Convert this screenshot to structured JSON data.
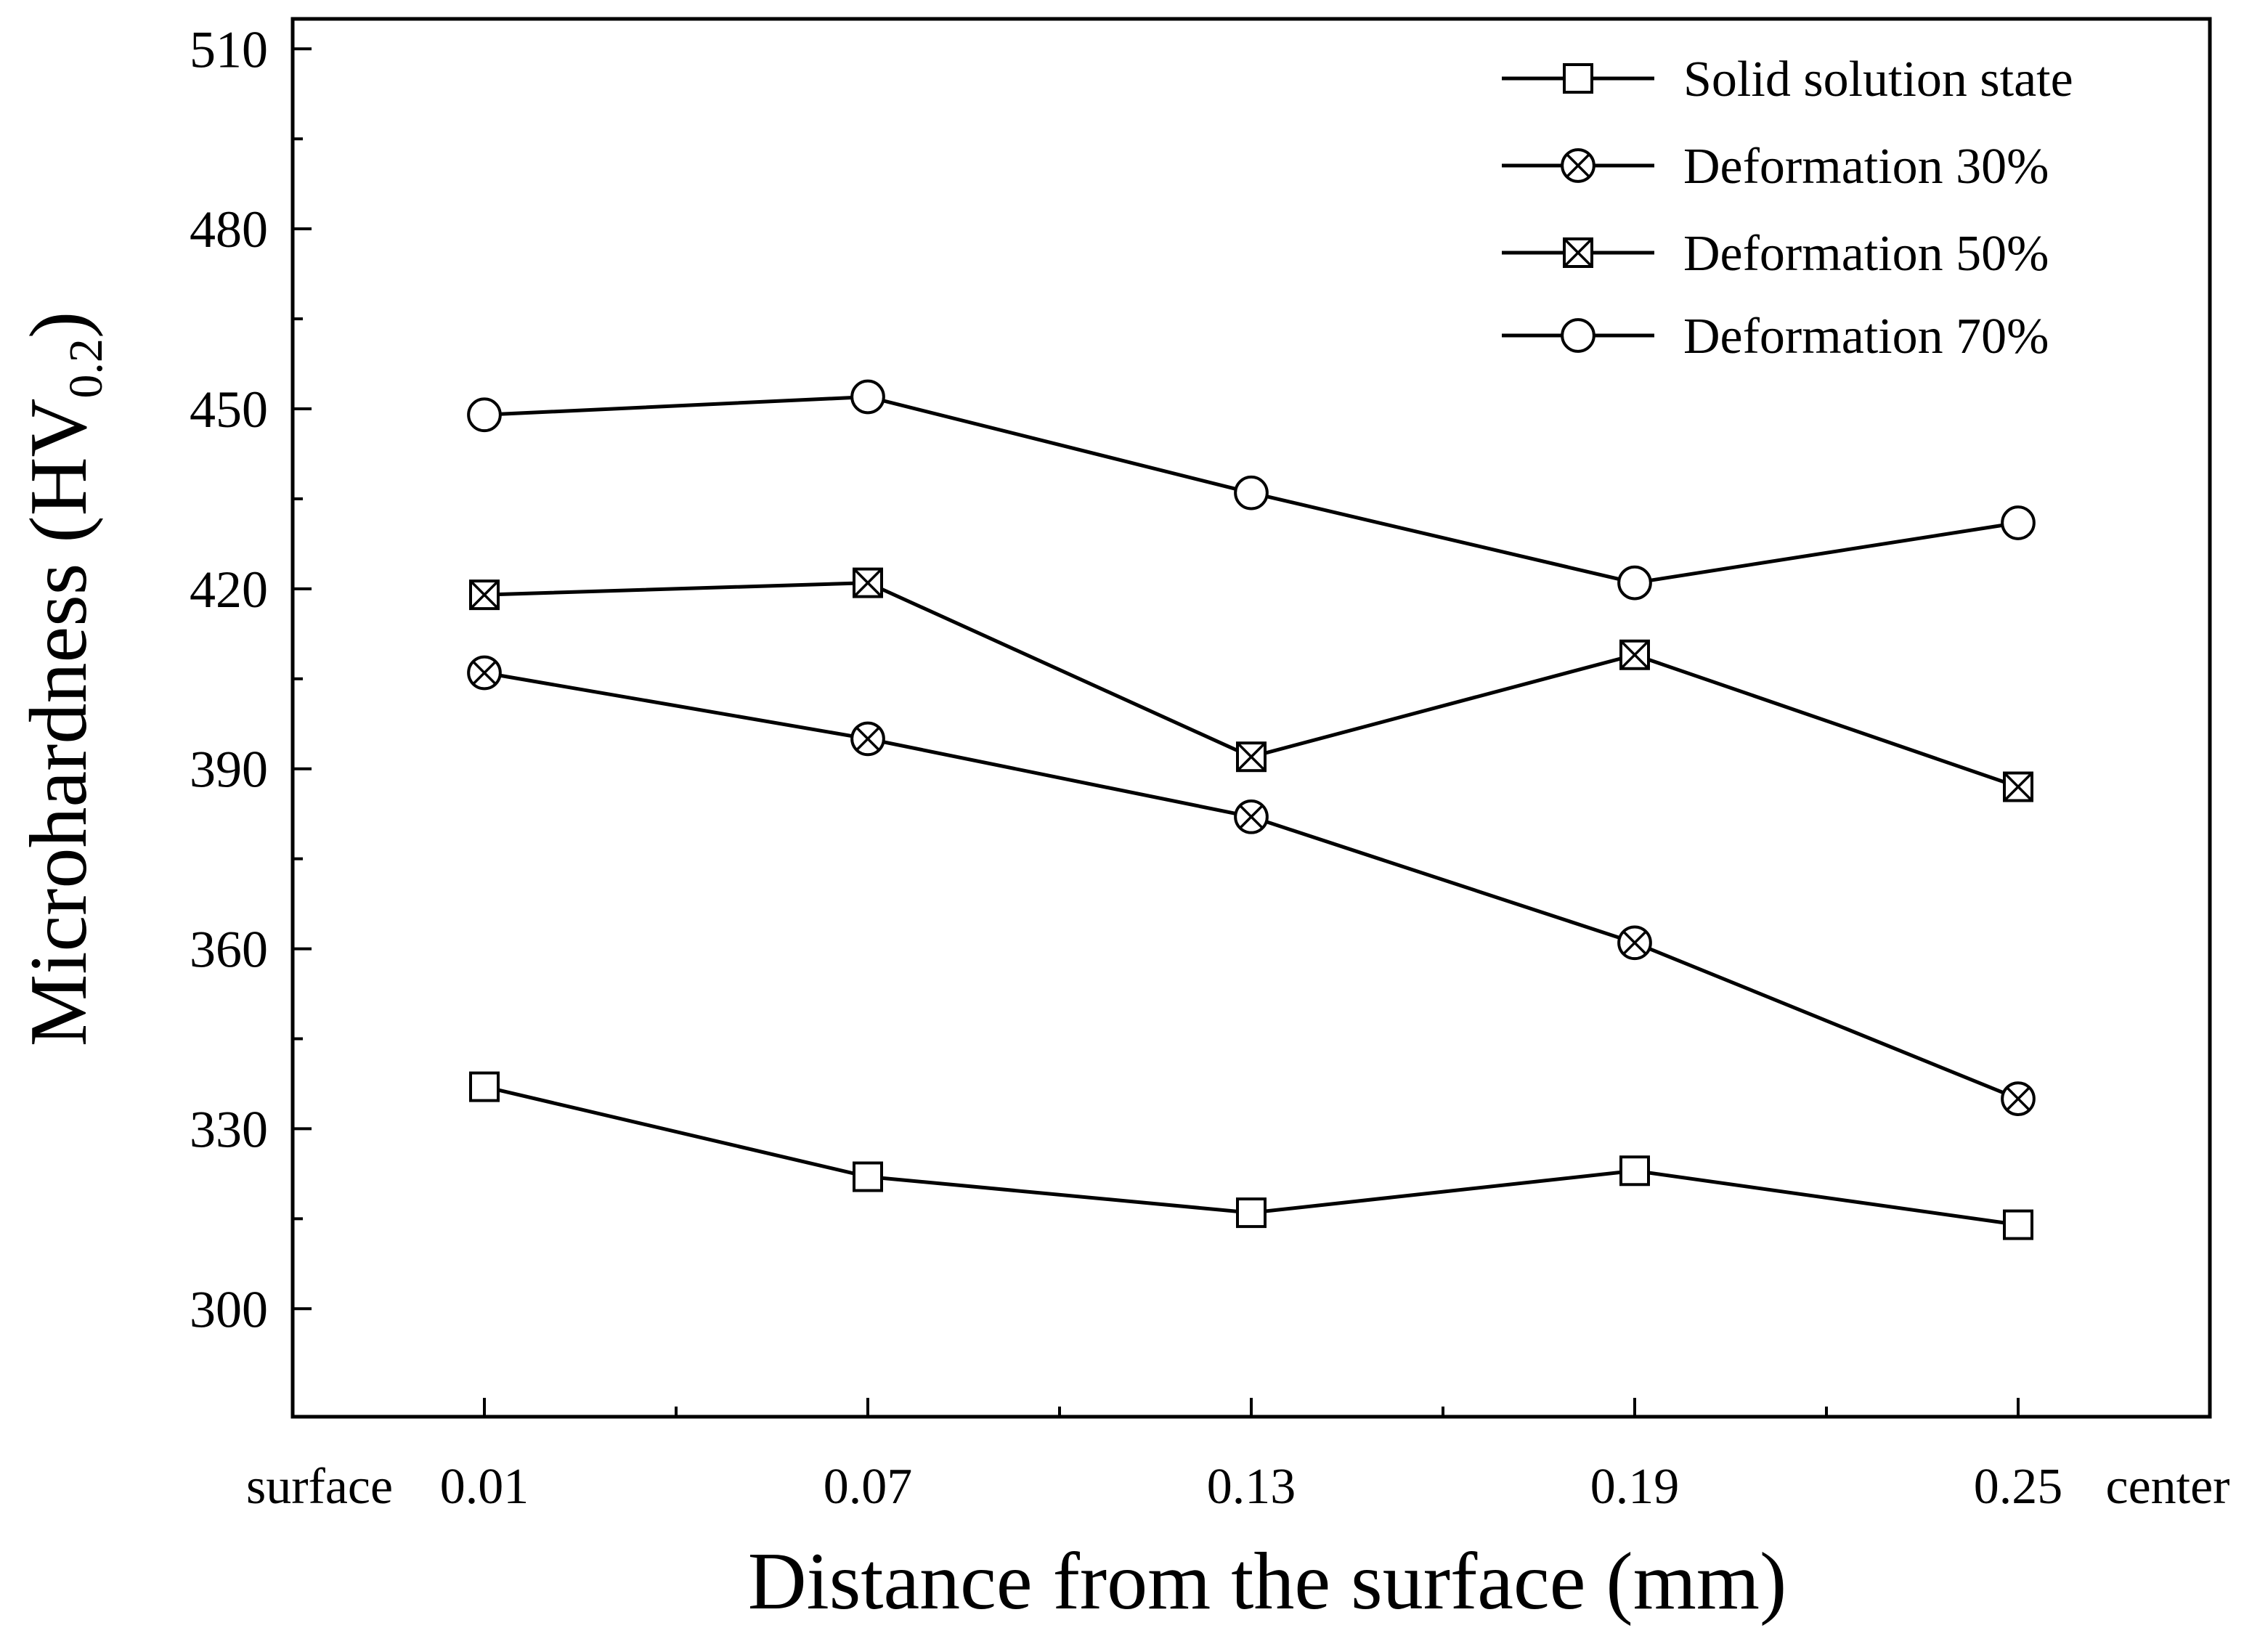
{
  "chart_data": {
    "type": "line",
    "title": "",
    "xlabel": "Distance from the surface (mm)",
    "ylabel_main": "Microhardness (HV",
    "ylabel_sub": "0.2",
    "ylabel_close": ")",
    "x": [
      0.01,
      0.07,
      0.13,
      0.19,
      0.25
    ],
    "x_tick_labels": [
      "0.01",
      "0.07",
      "0.13",
      "0.19",
      "0.25"
    ],
    "x_end_labels": {
      "left": "surface",
      "right": "center"
    },
    "xlim": [
      -0.02,
      0.28
    ],
    "ylim": [
      282,
      515
    ],
    "y_ticks": [
      300,
      330,
      360,
      390,
      420,
      450,
      480,
      510
    ],
    "y_tick_labels": [
      "300",
      "330",
      "360",
      "390",
      "420",
      "450",
      "480",
      "510"
    ],
    "grid": false,
    "legend_position": "top-right",
    "series": [
      {
        "name": "Solid solution state",
        "marker": "square",
        "values": [
          337,
          322,
          316,
          323,
          314
        ]
      },
      {
        "name": "Deformation 30%",
        "marker": "circle-x",
        "values": [
          406,
          395,
          382,
          361,
          335
        ]
      },
      {
        "name": "Deformation 50%",
        "marker": "square-x",
        "values": [
          419,
          421,
          392,
          409,
          387
        ]
      },
      {
        "name": "Deformation 70%",
        "marker": "circle",
        "values": [
          449,
          452,
          436,
          421,
          431
        ]
      }
    ]
  }
}
